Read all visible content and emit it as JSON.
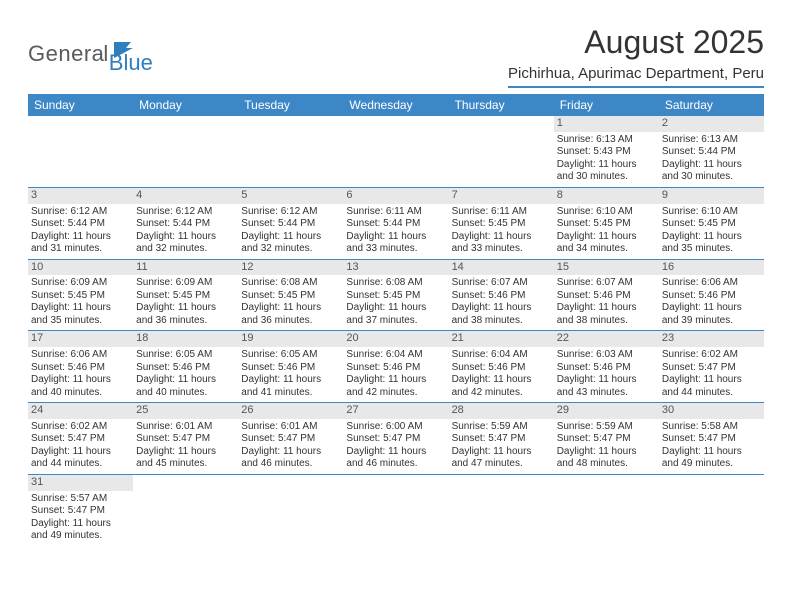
{
  "logo": {
    "text_general": "Genera",
    "text_l": "l",
    "text_blue": "Blue"
  },
  "header": {
    "title": "August 2025",
    "subtitle": "Pichirhua, Apurimac Department, Peru"
  },
  "colors": {
    "header_bg": "#3d87c7",
    "header_text": "#ffffff",
    "daynum_bg": "#e8e8e8",
    "text": "#333333",
    "logo_gray": "#5a5a5a",
    "logo_blue": "#2f7fbf"
  },
  "calendar": {
    "day_names": [
      "Sunday",
      "Monday",
      "Tuesday",
      "Wednesday",
      "Thursday",
      "Friday",
      "Saturday"
    ],
    "weeks": [
      [
        {
          "empty": true
        },
        {
          "empty": true
        },
        {
          "empty": true
        },
        {
          "empty": true
        },
        {
          "empty": true
        },
        {
          "day": "1",
          "sunrise": "Sunrise: 6:13 AM",
          "sunset": "Sunset: 5:43 PM",
          "daylight1": "Daylight: 11 hours",
          "daylight2": "and 30 minutes."
        },
        {
          "day": "2",
          "sunrise": "Sunrise: 6:13 AM",
          "sunset": "Sunset: 5:44 PM",
          "daylight1": "Daylight: 11 hours",
          "daylight2": "and 30 minutes."
        }
      ],
      [
        {
          "day": "3",
          "sunrise": "Sunrise: 6:12 AM",
          "sunset": "Sunset: 5:44 PM",
          "daylight1": "Daylight: 11 hours",
          "daylight2": "and 31 minutes."
        },
        {
          "day": "4",
          "sunrise": "Sunrise: 6:12 AM",
          "sunset": "Sunset: 5:44 PM",
          "daylight1": "Daylight: 11 hours",
          "daylight2": "and 32 minutes."
        },
        {
          "day": "5",
          "sunrise": "Sunrise: 6:12 AM",
          "sunset": "Sunset: 5:44 PM",
          "daylight1": "Daylight: 11 hours",
          "daylight2": "and 32 minutes."
        },
        {
          "day": "6",
          "sunrise": "Sunrise: 6:11 AM",
          "sunset": "Sunset: 5:44 PM",
          "daylight1": "Daylight: 11 hours",
          "daylight2": "and 33 minutes."
        },
        {
          "day": "7",
          "sunrise": "Sunrise: 6:11 AM",
          "sunset": "Sunset: 5:45 PM",
          "daylight1": "Daylight: 11 hours",
          "daylight2": "and 33 minutes."
        },
        {
          "day": "8",
          "sunrise": "Sunrise: 6:10 AM",
          "sunset": "Sunset: 5:45 PM",
          "daylight1": "Daylight: 11 hours",
          "daylight2": "and 34 minutes."
        },
        {
          "day": "9",
          "sunrise": "Sunrise: 6:10 AM",
          "sunset": "Sunset: 5:45 PM",
          "daylight1": "Daylight: 11 hours",
          "daylight2": "and 35 minutes."
        }
      ],
      [
        {
          "day": "10",
          "sunrise": "Sunrise: 6:09 AM",
          "sunset": "Sunset: 5:45 PM",
          "daylight1": "Daylight: 11 hours",
          "daylight2": "and 35 minutes."
        },
        {
          "day": "11",
          "sunrise": "Sunrise: 6:09 AM",
          "sunset": "Sunset: 5:45 PM",
          "daylight1": "Daylight: 11 hours",
          "daylight2": "and 36 minutes."
        },
        {
          "day": "12",
          "sunrise": "Sunrise: 6:08 AM",
          "sunset": "Sunset: 5:45 PM",
          "daylight1": "Daylight: 11 hours",
          "daylight2": "and 36 minutes."
        },
        {
          "day": "13",
          "sunrise": "Sunrise: 6:08 AM",
          "sunset": "Sunset: 5:45 PM",
          "daylight1": "Daylight: 11 hours",
          "daylight2": "and 37 minutes."
        },
        {
          "day": "14",
          "sunrise": "Sunrise: 6:07 AM",
          "sunset": "Sunset: 5:46 PM",
          "daylight1": "Daylight: 11 hours",
          "daylight2": "and 38 minutes."
        },
        {
          "day": "15",
          "sunrise": "Sunrise: 6:07 AM",
          "sunset": "Sunset: 5:46 PM",
          "daylight1": "Daylight: 11 hours",
          "daylight2": "and 38 minutes."
        },
        {
          "day": "16",
          "sunrise": "Sunrise: 6:06 AM",
          "sunset": "Sunset: 5:46 PM",
          "daylight1": "Daylight: 11 hours",
          "daylight2": "and 39 minutes."
        }
      ],
      [
        {
          "day": "17",
          "sunrise": "Sunrise: 6:06 AM",
          "sunset": "Sunset: 5:46 PM",
          "daylight1": "Daylight: 11 hours",
          "daylight2": "and 40 minutes."
        },
        {
          "day": "18",
          "sunrise": "Sunrise: 6:05 AM",
          "sunset": "Sunset: 5:46 PM",
          "daylight1": "Daylight: 11 hours",
          "daylight2": "and 40 minutes."
        },
        {
          "day": "19",
          "sunrise": "Sunrise: 6:05 AM",
          "sunset": "Sunset: 5:46 PM",
          "daylight1": "Daylight: 11 hours",
          "daylight2": "and 41 minutes."
        },
        {
          "day": "20",
          "sunrise": "Sunrise: 6:04 AM",
          "sunset": "Sunset: 5:46 PM",
          "daylight1": "Daylight: 11 hours",
          "daylight2": "and 42 minutes."
        },
        {
          "day": "21",
          "sunrise": "Sunrise: 6:04 AM",
          "sunset": "Sunset: 5:46 PM",
          "daylight1": "Daylight: 11 hours",
          "daylight2": "and 42 minutes."
        },
        {
          "day": "22",
          "sunrise": "Sunrise: 6:03 AM",
          "sunset": "Sunset: 5:46 PM",
          "daylight1": "Daylight: 11 hours",
          "daylight2": "and 43 minutes."
        },
        {
          "day": "23",
          "sunrise": "Sunrise: 6:02 AM",
          "sunset": "Sunset: 5:47 PM",
          "daylight1": "Daylight: 11 hours",
          "daylight2": "and 44 minutes."
        }
      ],
      [
        {
          "day": "24",
          "sunrise": "Sunrise: 6:02 AM",
          "sunset": "Sunset: 5:47 PM",
          "daylight1": "Daylight: 11 hours",
          "daylight2": "and 44 minutes."
        },
        {
          "day": "25",
          "sunrise": "Sunrise: 6:01 AM",
          "sunset": "Sunset: 5:47 PM",
          "daylight1": "Daylight: 11 hours",
          "daylight2": "and 45 minutes."
        },
        {
          "day": "26",
          "sunrise": "Sunrise: 6:01 AM",
          "sunset": "Sunset: 5:47 PM",
          "daylight1": "Daylight: 11 hours",
          "daylight2": "and 46 minutes."
        },
        {
          "day": "27",
          "sunrise": "Sunrise: 6:00 AM",
          "sunset": "Sunset: 5:47 PM",
          "daylight1": "Daylight: 11 hours",
          "daylight2": "and 46 minutes."
        },
        {
          "day": "28",
          "sunrise": "Sunrise: 5:59 AM",
          "sunset": "Sunset: 5:47 PM",
          "daylight1": "Daylight: 11 hours",
          "daylight2": "and 47 minutes."
        },
        {
          "day": "29",
          "sunrise": "Sunrise: 5:59 AM",
          "sunset": "Sunset: 5:47 PM",
          "daylight1": "Daylight: 11 hours",
          "daylight2": "and 48 minutes."
        },
        {
          "day": "30",
          "sunrise": "Sunrise: 5:58 AM",
          "sunset": "Sunset: 5:47 PM",
          "daylight1": "Daylight: 11 hours",
          "daylight2": "and 49 minutes."
        }
      ],
      [
        {
          "day": "31",
          "sunrise": "Sunrise: 5:57 AM",
          "sunset": "Sunset: 5:47 PM",
          "daylight1": "Daylight: 11 hours",
          "daylight2": "and 49 minutes."
        },
        {
          "empty": true
        },
        {
          "empty": true
        },
        {
          "empty": true
        },
        {
          "empty": true
        },
        {
          "empty": true
        },
        {
          "empty": true
        }
      ]
    ]
  }
}
